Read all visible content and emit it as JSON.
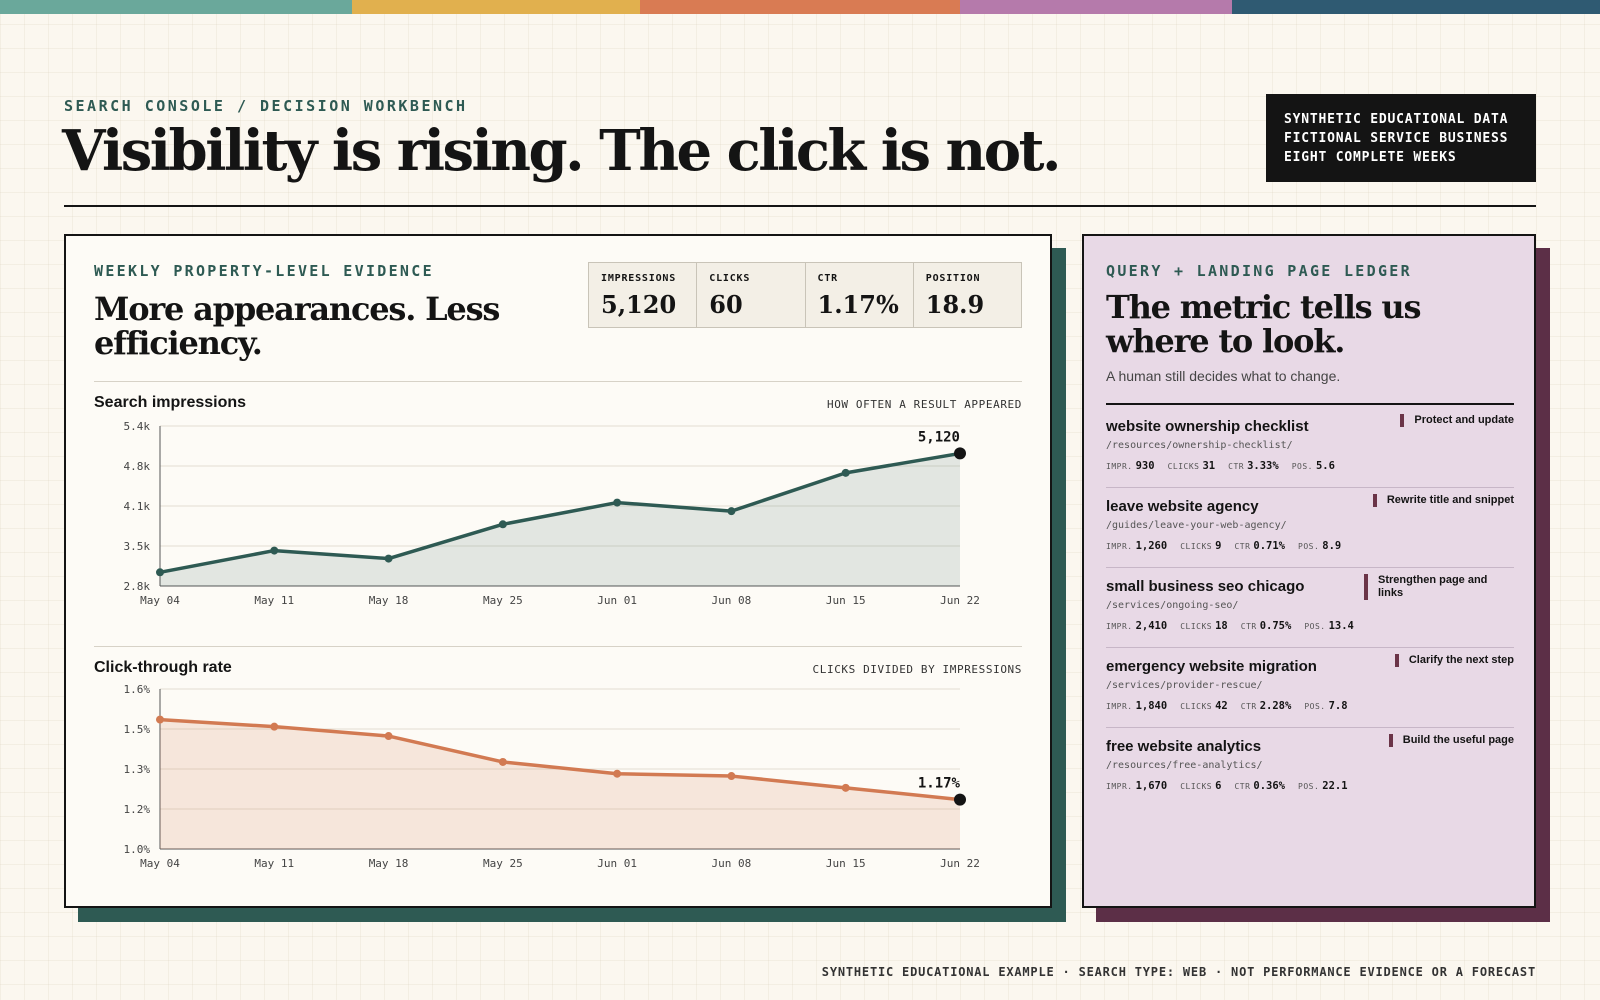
{
  "colors": {
    "bar": [
      "#6aa89b",
      "#e1b04e",
      "#d97b53",
      "#b57aab",
      "#2f5a72"
    ],
    "teal": "#2e5a53",
    "coral": "#d27a52",
    "plum": "#5c2f47",
    "ledger_bg": "#e8d9e6",
    "ink": "#141414"
  },
  "header": {
    "eyebrow": "SEARCH CONSOLE / DECISION WORKBENCH",
    "title": "Visibility is rising. The click is not.",
    "badge": [
      "SYNTHETIC EDUCATIONAL DATA",
      "FICTIONAL SERVICE BUSINESS",
      "EIGHT COMPLETE WEEKS"
    ]
  },
  "evidence": {
    "eyebrow": "WEEKLY PROPERTY-LEVEL EVIDENCE",
    "title": "More appearances. Less efficiency.",
    "kpis": [
      {
        "label": "IMPRESSIONS",
        "value": "5,120"
      },
      {
        "label": "CLICKS",
        "value": "60"
      },
      {
        "label": "CTR",
        "value": "1.17%"
      },
      {
        "label": "POSITION",
        "value": "18.9"
      }
    ]
  },
  "chart_data": [
    {
      "type": "area",
      "title": "Search impressions",
      "note": "HOW OFTEN A RESULT APPEARED",
      "categories": [
        "May 04",
        "May 11",
        "May 18",
        "May 25",
        "Jun 01",
        "Jun 08",
        "Jun 15",
        "Jun 22"
      ],
      "values": [
        3040,
        3420,
        3280,
        3880,
        4260,
        4110,
        4780,
        5120
      ],
      "ylim": [
        2800,
        5600
      ],
      "yticks": [
        "5.4k",
        "4.8k",
        "4.1k",
        "3.5k",
        "2.8k"
      ],
      "end_label": "5,120",
      "grid": true
    },
    {
      "type": "area",
      "title": "Click-through rate",
      "note": "CLICKS DIVIDED BY IMPRESSIONS",
      "categories": [
        "May 04",
        "May 11",
        "May 18",
        "May 25",
        "Jun 01",
        "Jun 08",
        "Jun 15",
        "Jun 22"
      ],
      "values": [
        1.51,
        1.48,
        1.44,
        1.33,
        1.28,
        1.27,
        1.22,
        1.17
      ],
      "ylim": [
        0.96,
        1.64
      ],
      "yticks": [
        "1.6%",
        "1.5%",
        "1.3%",
        "1.2%",
        "1.0%"
      ],
      "end_label": "1.17%",
      "grid": true
    }
  ],
  "ledger": {
    "eyebrow": "QUERY + LANDING PAGE LEDGER",
    "title": "The metric tells us where to look.",
    "subtitle": "A human still decides what to change.",
    "metric_labels": {
      "impr": "IMPR.",
      "clicks": "CLICKS",
      "ctr": "CTR",
      "pos": "POS."
    },
    "rows": [
      {
        "query": "website ownership checklist",
        "path": "/resources/ownership-checklist/",
        "impr": "930",
        "clicks": "31",
        "ctr": "3.33%",
        "pos": "5.6",
        "action": "Protect and update"
      },
      {
        "query": "leave website agency",
        "path": "/guides/leave-your-web-agency/",
        "impr": "1,260",
        "clicks": "9",
        "ctr": "0.71%",
        "pos": "8.9",
        "action": "Rewrite title and snippet"
      },
      {
        "query": "small business seo chicago",
        "path": "/services/ongoing-seo/",
        "impr": "2,410",
        "clicks": "18",
        "ctr": "0.75%",
        "pos": "13.4",
        "action": "Strengthen page and links"
      },
      {
        "query": "emergency website migration",
        "path": "/services/provider-rescue/",
        "impr": "1,840",
        "clicks": "42",
        "ctr": "2.28%",
        "pos": "7.8",
        "action": "Clarify the next step"
      },
      {
        "query": "free website analytics",
        "path": "/resources/free-analytics/",
        "impr": "1,670",
        "clicks": "6",
        "ctr": "0.36%",
        "pos": "22.1",
        "action": "Build the useful page"
      }
    ]
  },
  "footer": "SYNTHETIC EDUCATIONAL EXAMPLE · SEARCH TYPE: WEB · NOT PERFORMANCE EVIDENCE OR A FORECAST"
}
